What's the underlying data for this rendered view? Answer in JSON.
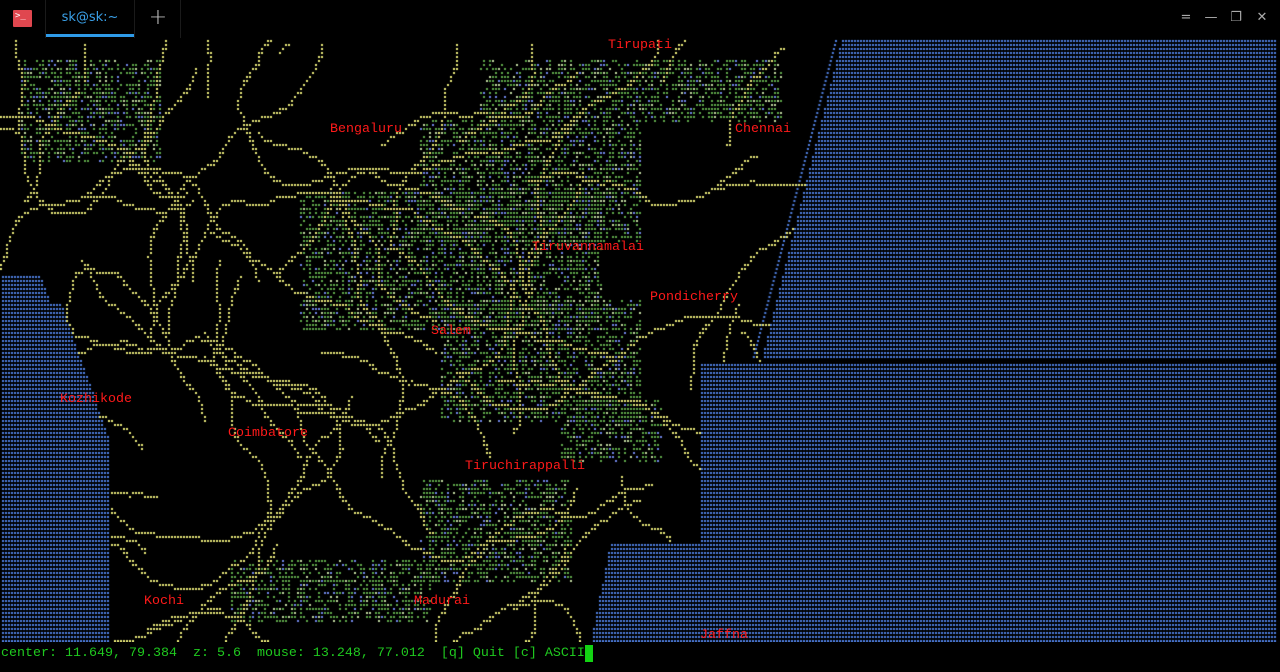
{
  "window": {
    "tab_title": "sk@sk:~",
    "app_icon": "terminal-icon",
    "new_tab_icon": "plus-icon",
    "controls": [
      "menu-icon",
      "minimize-icon",
      "maximize-icon",
      "close-icon"
    ]
  },
  "map": {
    "labels": [
      "Tirupati",
      "Bengaluru",
      "Chennai",
      "Tiruvannamalai",
      "Pondicherry",
      "Salem",
      "Kozhikode",
      "Coimbatore",
      "Tiruchirappalli",
      "Kochi",
      "Madurai",
      "Jaffna"
    ],
    "colors": {
      "water": "#4f7fe0",
      "road": "#e8e87a",
      "green": "#5fa84a",
      "label": "#ff1a1a"
    }
  },
  "status": {
    "text": "center: 11.649, 79.384  z: 5.6  mouse: 13.248, 77.012  [q] Quit [c] ASCII",
    "center": "11.649, 79.384",
    "zoom": "5.6",
    "mouse": "13.248, 77.012"
  }
}
